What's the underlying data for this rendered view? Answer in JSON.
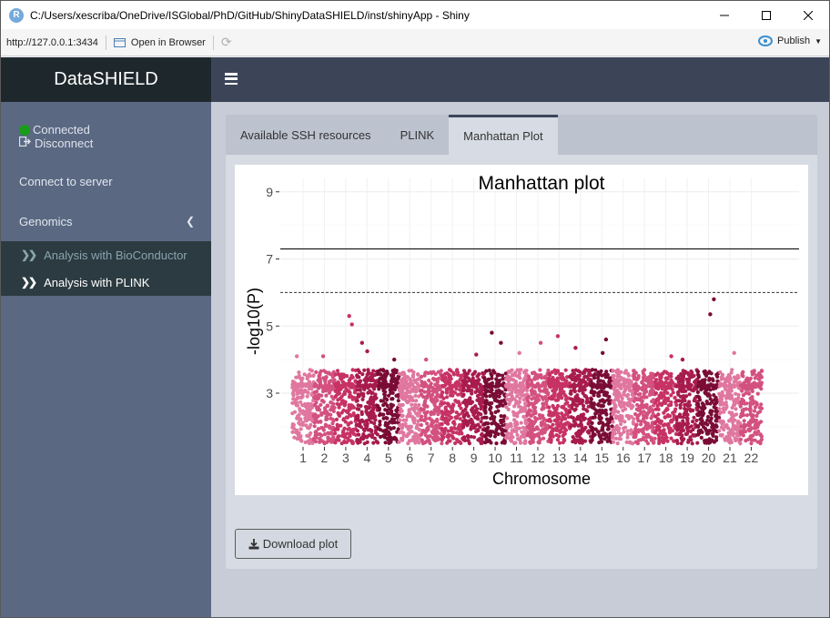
{
  "window": {
    "title": "C:/Users/xescriba/OneDrive/ISGlobal/PhD/GitHub/ShinyDataSHIELD/inst/shinyApp - Shiny",
    "app_icon_letter": "R"
  },
  "browser": {
    "url": "http://127.0.0.1:3434",
    "open_browser_label": "Open in Browser",
    "publish_label": "Publish"
  },
  "header": {
    "brand": "DataSHIELD"
  },
  "sidebar": {
    "status_connected": "Connected",
    "disconnect_label": "Disconnect",
    "connect_server_label": "Connect to server",
    "genomics_label": "Genomics",
    "submenu": [
      {
        "label": "Analysis with BioConductor",
        "active": false
      },
      {
        "label": "Analysis with PLINK",
        "active": true
      }
    ]
  },
  "tabs": [
    {
      "label": "Available SSH resources",
      "active": false
    },
    {
      "label": "PLINK",
      "active": false
    },
    {
      "label": "Manhattan Plot",
      "active": true
    }
  ],
  "download_label": "Download plot",
  "colors": {
    "sidebar_bg": "#5a6882",
    "header_dark": "#1e282c",
    "navbar": "#3c4558",
    "connected_dot": "#1a9c1a"
  },
  "chart_data": {
    "type": "scatter",
    "title": "Manhattan plot",
    "xlabel": "Chromosome",
    "ylabel": "-log10(P)",
    "categories": [
      "1",
      "2",
      "3",
      "4",
      "5",
      "6",
      "7",
      "8",
      "9",
      "10",
      "11",
      "12",
      "13",
      "14",
      "15",
      "16",
      "17",
      "18",
      "19",
      "20",
      "21",
      "22"
    ],
    "yticks": [
      3,
      5,
      7,
      9
    ],
    "ylim": [
      1.4,
      9.4
    ],
    "genome_wide_line": 7.3,
    "suggestive_line": 6.0,
    "bulk_range": [
      1.5,
      3.7
    ],
    "top_hits": [
      {
        "chr": "1",
        "value": 4.1
      },
      {
        "chr": "2",
        "value": 4.1
      },
      {
        "chr": "3",
        "value": 5.3
      },
      {
        "chr": "3",
        "value": 5.05
      },
      {
        "chr": "4",
        "value": 4.25
      },
      {
        "chr": "4",
        "value": 4.5
      },
      {
        "chr": "5",
        "value": 4.0
      },
      {
        "chr": "7",
        "value": 4.0
      },
      {
        "chr": "9",
        "value": 4.15
      },
      {
        "chr": "10",
        "value": 4.8
      },
      {
        "chr": "10",
        "value": 4.5
      },
      {
        "chr": "11",
        "value": 4.2
      },
      {
        "chr": "12",
        "value": 4.5
      },
      {
        "chr": "13",
        "value": 4.7
      },
      {
        "chr": "14",
        "value": 4.35
      },
      {
        "chr": "15",
        "value": 4.6
      },
      {
        "chr": "15",
        "value": 4.2
      },
      {
        "chr": "18",
        "value": 4.1
      },
      {
        "chr": "19",
        "value": 4.0
      },
      {
        "chr": "20",
        "value": 5.8
      },
      {
        "chr": "20",
        "value": 5.35
      },
      {
        "chr": "21",
        "value": 4.2
      }
    ],
    "palette": [
      "#e0779f",
      "#d3517f",
      "#c73264",
      "#a81c4d",
      "#7a0c35"
    ],
    "grid": true
  }
}
